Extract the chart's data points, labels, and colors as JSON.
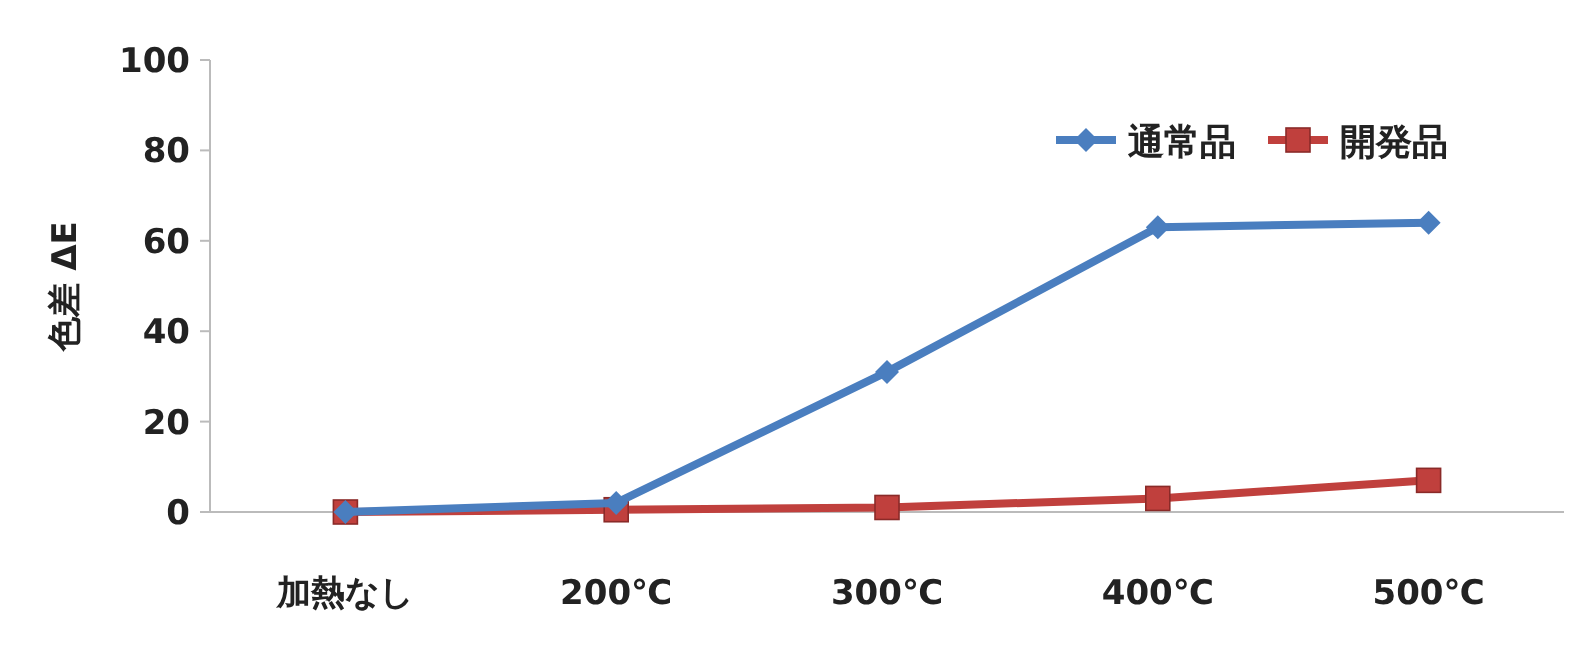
{
  "chart_data": {
    "type": "line",
    "ylabel": "色差 ΔE",
    "categories": [
      "加熱なし",
      "200℃",
      "300℃",
      "400℃",
      "500℃"
    ],
    "series": [
      {
        "name": "通常品",
        "color": "#4a7ebf",
        "values": [
          0,
          2,
          31,
          63,
          64
        ],
        "marker": "diamond"
      },
      {
        "name": "開発品",
        "color": "#c0403d",
        "values": [
          0,
          0.5,
          1,
          3,
          7
        ],
        "marker": "square"
      }
    ],
    "ylim": [
      0,
      100
    ],
    "yticks": [
      0,
      20,
      40,
      60,
      80,
      100
    ],
    "grid": false,
    "legend": "top right",
    "line_style": "solid"
  }
}
